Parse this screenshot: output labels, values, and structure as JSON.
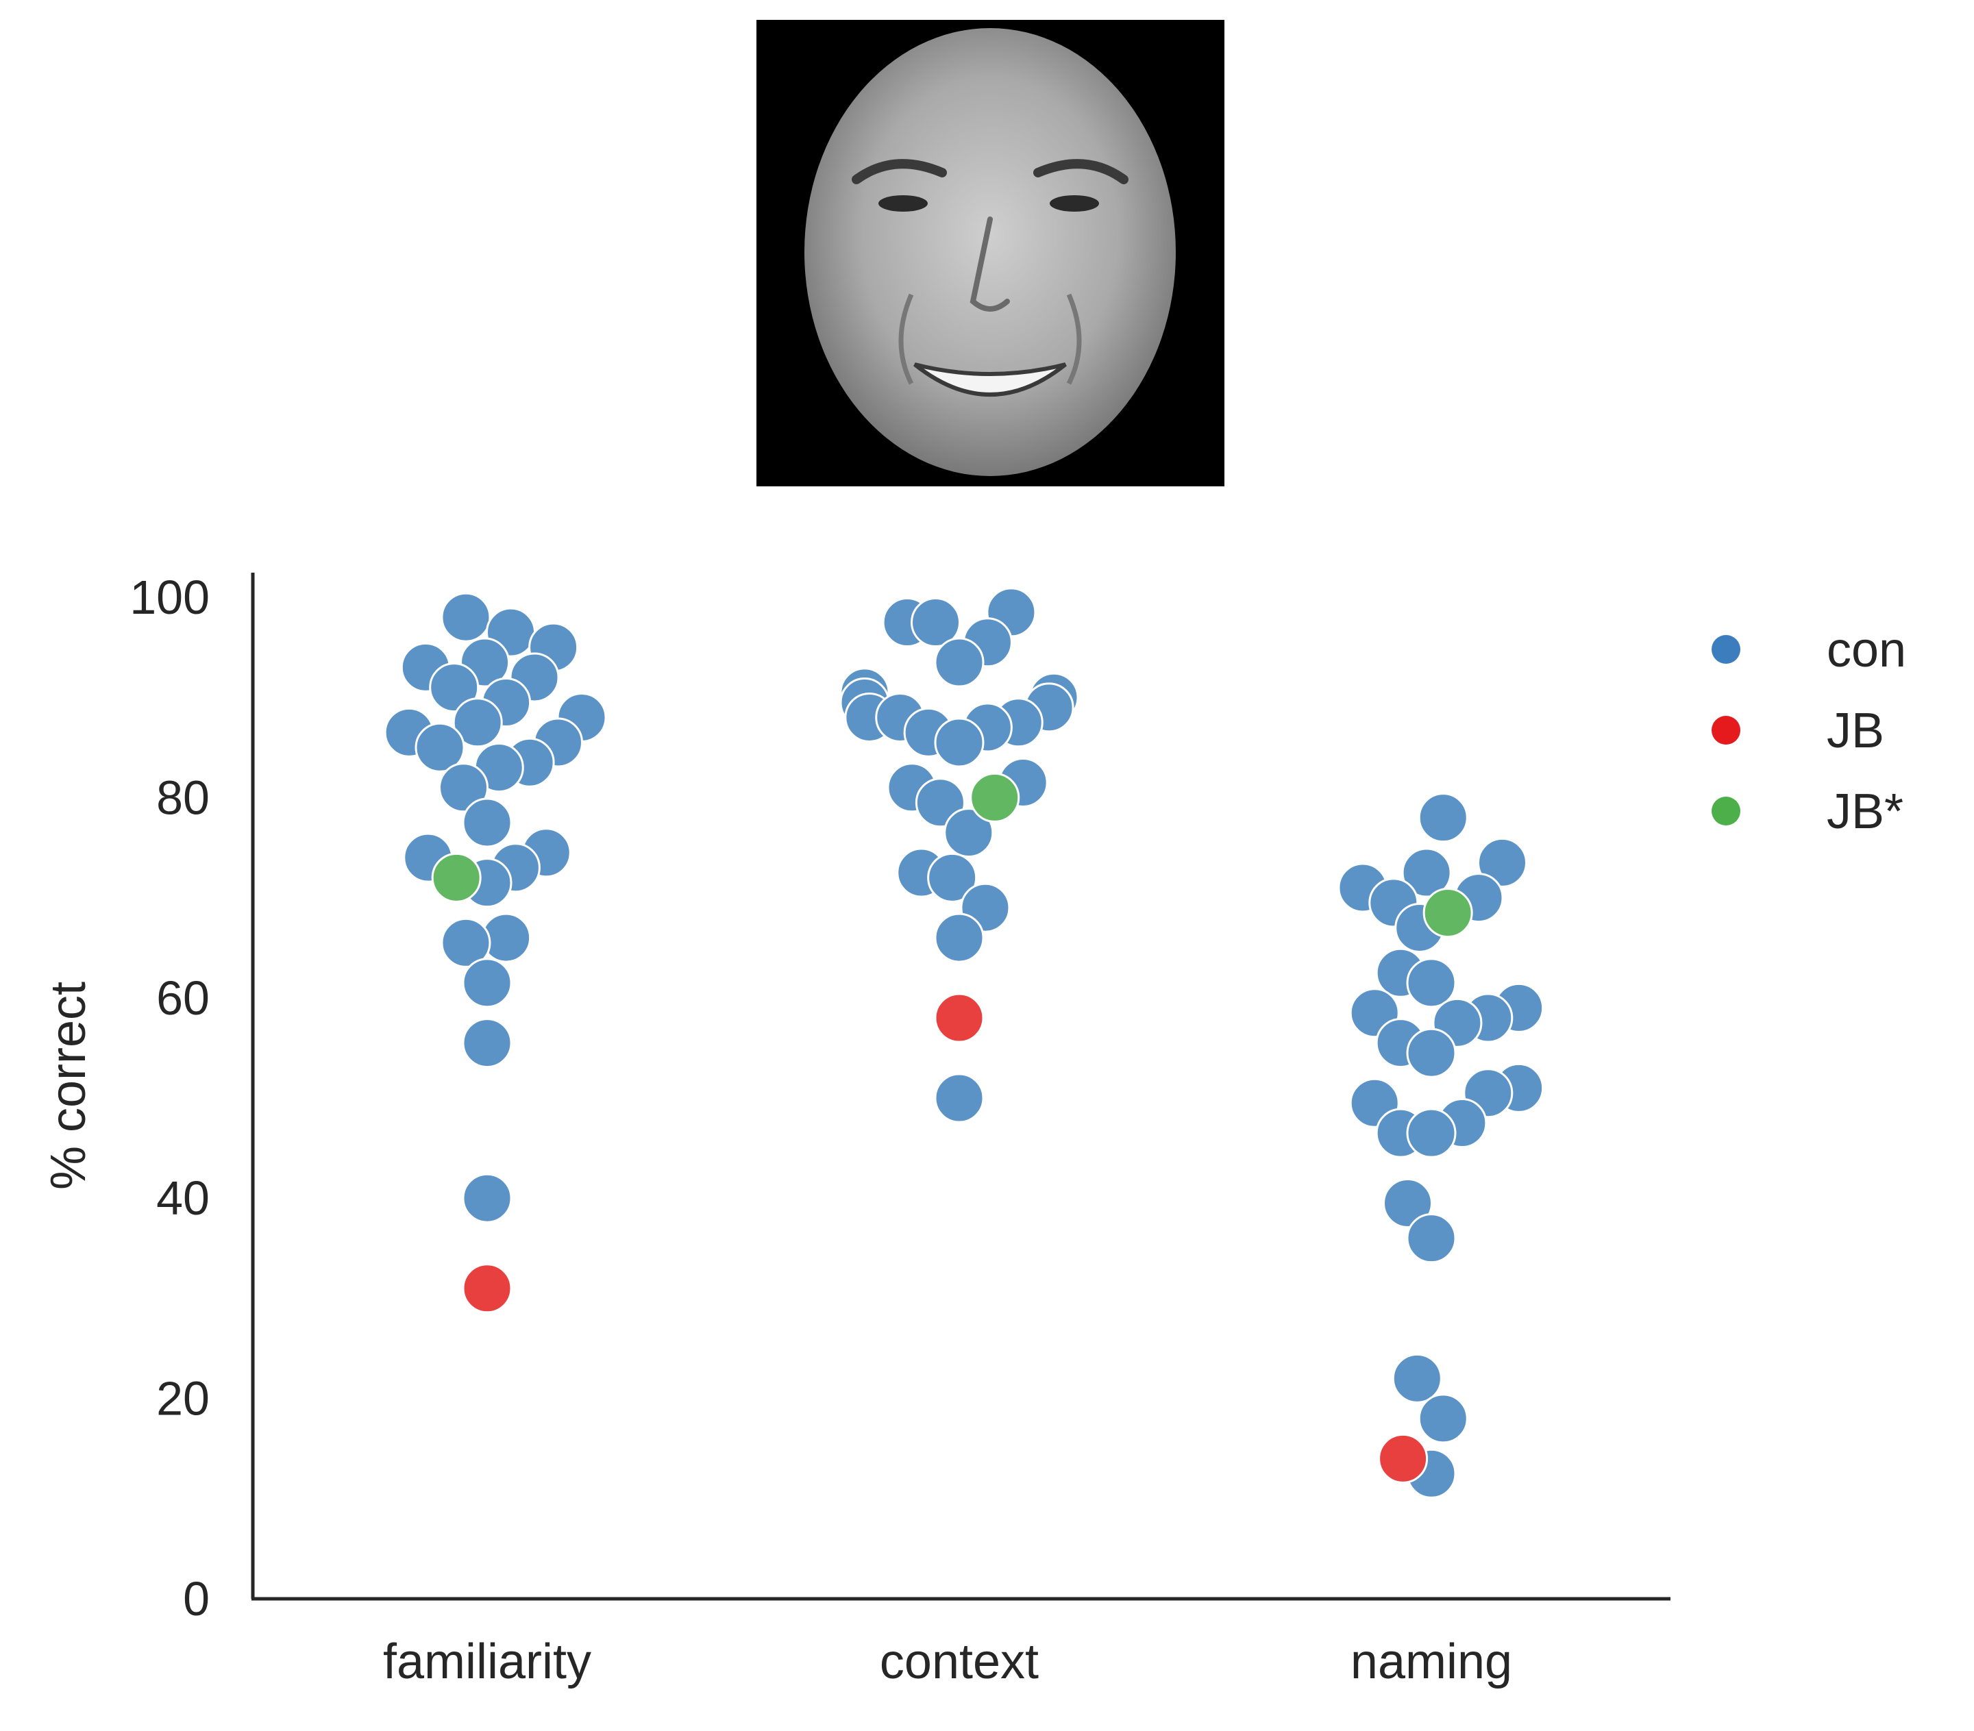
{
  "face_image": {
    "icon": "face-photo-icon",
    "background": "#000000",
    "face_tone": "#b9b9b9"
  },
  "chart_data": {
    "type": "scatter",
    "subtype": "swarm",
    "title": "",
    "xlabel": "",
    "ylabel": "% correct",
    "ylim": [
      0,
      100
    ],
    "yticks": [
      0,
      20,
      40,
      60,
      80,
      100
    ],
    "categories": [
      "familiarity",
      "context",
      "naming"
    ],
    "grid": false,
    "legend_position": "right",
    "colors": {
      "con": "#5b93c7",
      "JB": "#e8403f",
      "JB*": "#62b862"
    },
    "series": [
      {
        "name": "con",
        "marker_color": "#3b7dbd",
        "points": [
          {
            "category": "familiarity",
            "y": 98.0,
            "offset": -0.09
          },
          {
            "category": "familiarity",
            "y": 96.5,
            "offset": 0.1
          },
          {
            "category": "familiarity",
            "y": 95.0,
            "offset": 0.28
          },
          {
            "category": "familiarity",
            "y": 93.5,
            "offset": -0.01
          },
          {
            "category": "familiarity",
            "y": 93.0,
            "offset": -0.26
          },
          {
            "category": "familiarity",
            "y": 92.0,
            "offset": 0.2
          },
          {
            "category": "familiarity",
            "y": 91.0,
            "offset": -0.14
          },
          {
            "category": "familiarity",
            "y": 89.5,
            "offset": 0.08
          },
          {
            "category": "familiarity",
            "y": 88.0,
            "offset": 0.4
          },
          {
            "category": "familiarity",
            "y": 87.5,
            "offset": -0.04
          },
          {
            "category": "familiarity",
            "y": 86.5,
            "offset": -0.33
          },
          {
            "category": "familiarity",
            "y": 85.5,
            "offset": 0.3
          },
          {
            "category": "familiarity",
            "y": 85.0,
            "offset": -0.2
          },
          {
            "category": "familiarity",
            "y": 83.5,
            "offset": 0.18
          },
          {
            "category": "familiarity",
            "y": 83.0,
            "offset": 0.05
          },
          {
            "category": "familiarity",
            "y": 81.0,
            "offset": -0.1
          },
          {
            "category": "familiarity",
            "y": 77.5,
            "offset": 0.0
          },
          {
            "category": "familiarity",
            "y": 74.5,
            "offset": 0.25
          },
          {
            "category": "familiarity",
            "y": 74.0,
            "offset": -0.25
          },
          {
            "category": "familiarity",
            "y": 73.0,
            "offset": 0.12
          },
          {
            "category": "familiarity",
            "y": 71.5,
            "offset": 0.0
          },
          {
            "category": "familiarity",
            "y": 66.0,
            "offset": 0.08
          },
          {
            "category": "familiarity",
            "y": 65.5,
            "offset": -0.09
          },
          {
            "category": "familiarity",
            "y": 61.5,
            "offset": 0.0
          },
          {
            "category": "familiarity",
            "y": 55.5,
            "offset": 0.0
          },
          {
            "category": "familiarity",
            "y": 40.0,
            "offset": 0.0
          },
          {
            "category": "context",
            "y": 98.5,
            "offset": 0.22
          },
          {
            "category": "context",
            "y": 97.5,
            "offset": -0.22
          },
          {
            "category": "context",
            "y": 97.5,
            "offset": -0.1
          },
          {
            "category": "context",
            "y": 95.5,
            "offset": 0.12
          },
          {
            "category": "context",
            "y": 93.5,
            "offset": 0.0
          },
          {
            "category": "context",
            "y": 90.5,
            "offset": -0.4
          },
          {
            "category": "context",
            "y": 90.0,
            "offset": 0.4
          },
          {
            "category": "context",
            "y": 89.5,
            "offset": -0.4
          },
          {
            "category": "context",
            "y": 89.0,
            "offset": 0.38
          },
          {
            "category": "context",
            "y": 88.0,
            "offset": -0.38
          },
          {
            "category": "context",
            "y": 88.0,
            "offset": -0.25
          },
          {
            "category": "context",
            "y": 87.5,
            "offset": 0.25
          },
          {
            "category": "context",
            "y": 87.0,
            "offset": 0.12
          },
          {
            "category": "context",
            "y": 86.5,
            "offset": -0.13
          },
          {
            "category": "context",
            "y": 85.5,
            "offset": 0.0
          },
          {
            "category": "context",
            "y": 81.5,
            "offset": 0.27
          },
          {
            "category": "context",
            "y": 81.0,
            "offset": -0.2
          },
          {
            "category": "context",
            "y": 79.5,
            "offset": -0.08
          },
          {
            "category": "context",
            "y": 76.5,
            "offset": 0.04
          },
          {
            "category": "context",
            "y": 72.5,
            "offset": -0.16
          },
          {
            "category": "context",
            "y": 72.0,
            "offset": -0.03
          },
          {
            "category": "context",
            "y": 69.0,
            "offset": 0.11
          },
          {
            "category": "context",
            "y": 66.0,
            "offset": 0.0
          },
          {
            "category": "context",
            "y": 50.0,
            "offset": 0.0
          },
          {
            "category": "naming",
            "y": 78.0,
            "offset": 0.05
          },
          {
            "category": "naming",
            "y": 73.5,
            "offset": 0.3
          },
          {
            "category": "naming",
            "y": 72.5,
            "offset": -0.02
          },
          {
            "category": "naming",
            "y": 71.0,
            "offset": -0.29
          },
          {
            "category": "naming",
            "y": 70.0,
            "offset": 0.2
          },
          {
            "category": "naming",
            "y": 69.5,
            "offset": -0.16
          },
          {
            "category": "naming",
            "y": 67.0,
            "offset": -0.05
          },
          {
            "category": "naming",
            "y": 62.5,
            "offset": -0.13
          },
          {
            "category": "naming",
            "y": 61.5,
            "offset": 0.0
          },
          {
            "category": "naming",
            "y": 59.0,
            "offset": 0.37
          },
          {
            "category": "naming",
            "y": 58.5,
            "offset": -0.24
          },
          {
            "category": "naming",
            "y": 58.0,
            "offset": 0.24
          },
          {
            "category": "naming",
            "y": 57.5,
            "offset": 0.11
          },
          {
            "category": "naming",
            "y": 55.5,
            "offset": -0.13
          },
          {
            "category": "naming",
            "y": 54.5,
            "offset": 0.0
          },
          {
            "category": "naming",
            "y": 51.0,
            "offset": 0.37
          },
          {
            "category": "naming",
            "y": 50.5,
            "offset": 0.24
          },
          {
            "category": "naming",
            "y": 49.5,
            "offset": -0.24
          },
          {
            "category": "naming",
            "y": 47.5,
            "offset": 0.13
          },
          {
            "category": "naming",
            "y": 46.5,
            "offset": -0.13
          },
          {
            "category": "naming",
            "y": 46.5,
            "offset": 0.0
          },
          {
            "category": "naming",
            "y": 39.5,
            "offset": -0.1
          },
          {
            "category": "naming",
            "y": 36.0,
            "offset": 0.0
          },
          {
            "category": "naming",
            "y": 22.0,
            "offset": -0.06
          },
          {
            "category": "naming",
            "y": 18.0,
            "offset": 0.05
          },
          {
            "category": "naming",
            "y": 12.5,
            "offset": 0.0
          }
        ]
      },
      {
        "name": "JB",
        "marker_color": "#e41a1c",
        "points": [
          {
            "category": "familiarity",
            "y": 31.0,
            "offset": 0.0
          },
          {
            "category": "context",
            "y": 58.0,
            "offset": 0.0
          },
          {
            "category": "naming",
            "y": 14.0,
            "offset": -0.12
          }
        ]
      },
      {
        "name": "JB*",
        "marker_color": "#4daf4a",
        "points": [
          {
            "category": "familiarity",
            "y": 72.0,
            "offset": -0.13
          },
          {
            "category": "context",
            "y": 80.0,
            "offset": 0.15
          },
          {
            "category": "naming",
            "y": 68.5,
            "offset": 0.07
          }
        ]
      }
    ]
  }
}
